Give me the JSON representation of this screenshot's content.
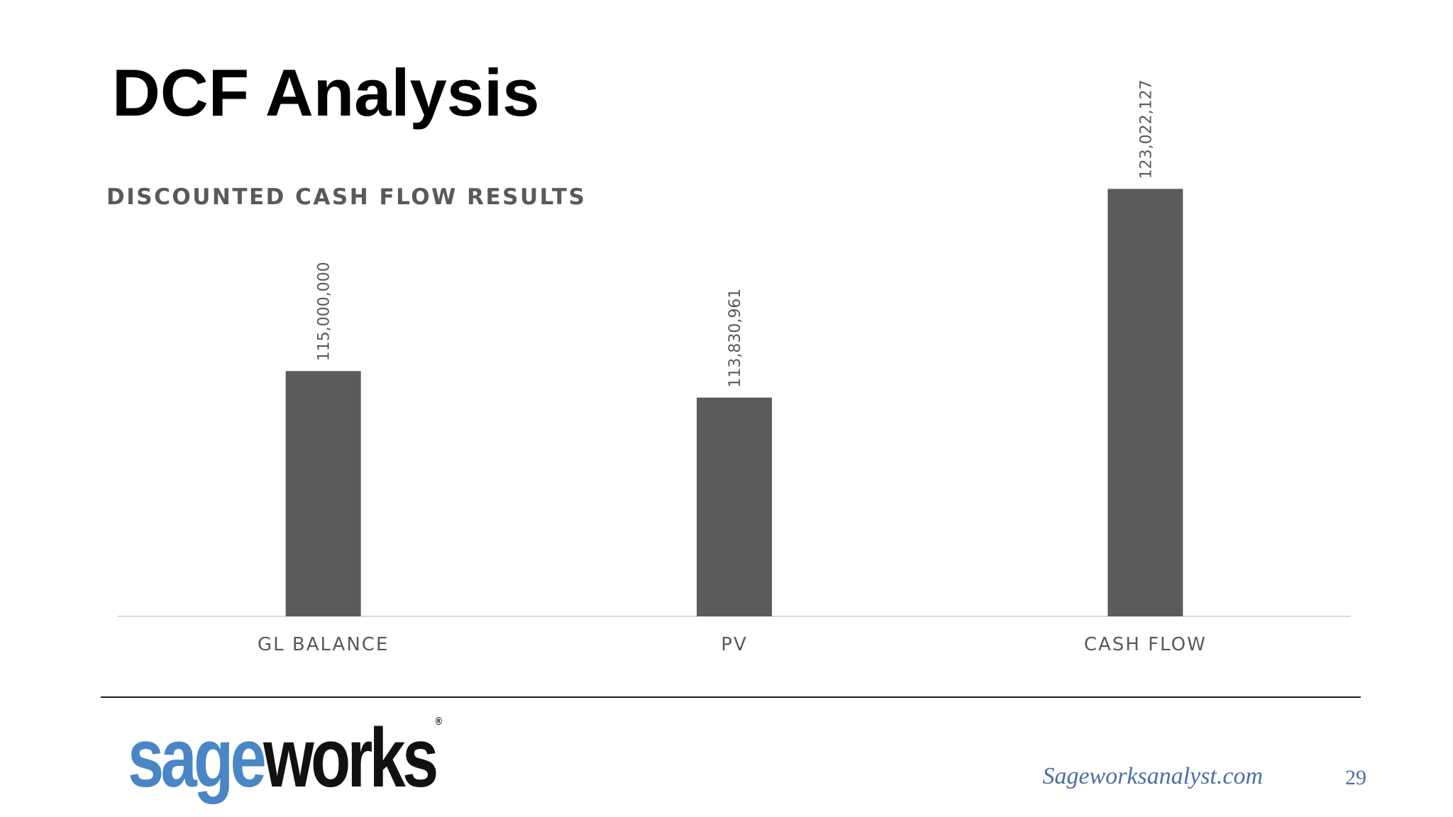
{
  "slide": {
    "title": "DCF Analysis",
    "page_number": "29",
    "website": "Sageworksanalyst.com"
  },
  "logo": {
    "part_a": "sage",
    "part_b": "works",
    "registered_mark": "®",
    "colors": {
      "part_a": "#4a86c5",
      "part_b": "#111111"
    }
  },
  "chart_data": {
    "type": "bar",
    "title": "DISCOUNTED CASH FLOW RESULTS",
    "categories": [
      "GL BALANCE",
      "PV",
      "CASH FLOW"
    ],
    "values": [
      115000000,
      113830961,
      123022127
    ],
    "data_labels": [
      "115,000,000",
      "113,830,961",
      "123,022,127"
    ],
    "ylim": [
      104200000,
      124000000
    ],
    "grid": false,
    "legend": "none",
    "bar_color": "#5b5b5b",
    "xlabel": "",
    "ylabel": ""
  }
}
